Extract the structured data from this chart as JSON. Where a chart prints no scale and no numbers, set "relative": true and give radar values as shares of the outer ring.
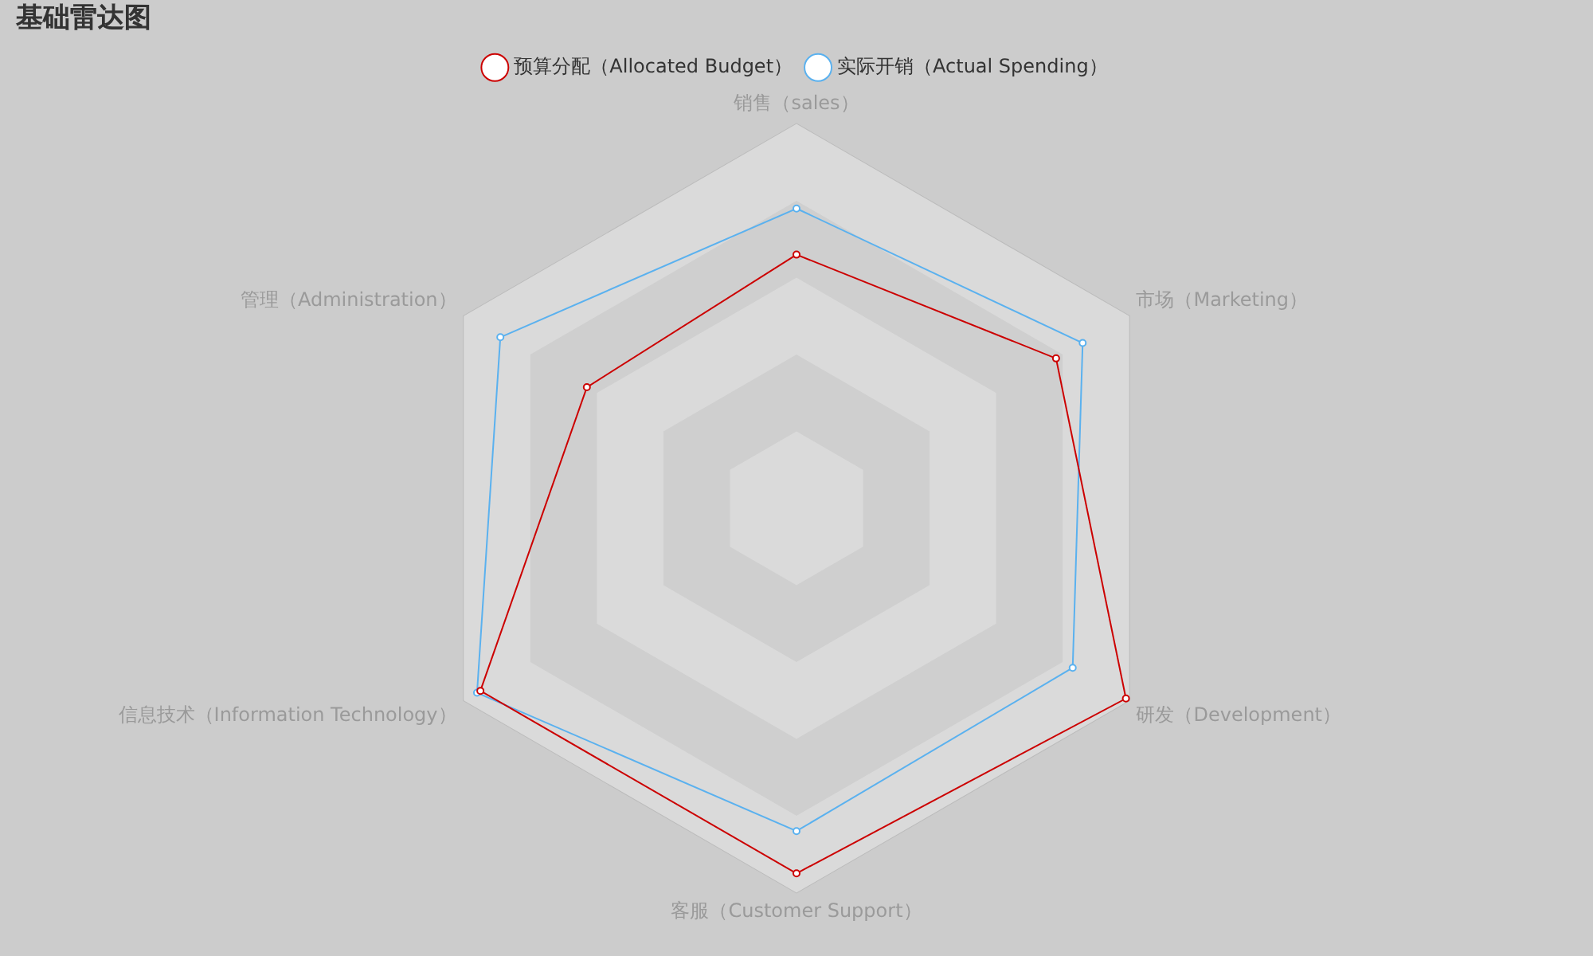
{
  "chart_data": {
    "type": "radar",
    "title": "基础雷达图",
    "categories": [
      "销售（sales）",
      "市场（Marketing）",
      "研发（Development）",
      "客服（Customer Support）",
      "信息技术（Information Technology）",
      "管理（Administration）"
    ],
    "relative": true,
    "grid": true,
    "legend": "top",
    "marker": "circle",
    "series": [
      {
        "name": "预算分配（Allocated Budget）",
        "color": "#cc0000",
        "values": [
          0.66,
          0.78,
          0.99,
          0.95,
          0.95,
          0.63
        ]
      },
      {
        "name": "实际开销（Actual Spending）",
        "color": "#5ab1ef",
        "values": [
          0.78,
          0.86,
          0.83,
          0.84,
          0.96,
          0.89
        ]
      }
    ]
  }
}
